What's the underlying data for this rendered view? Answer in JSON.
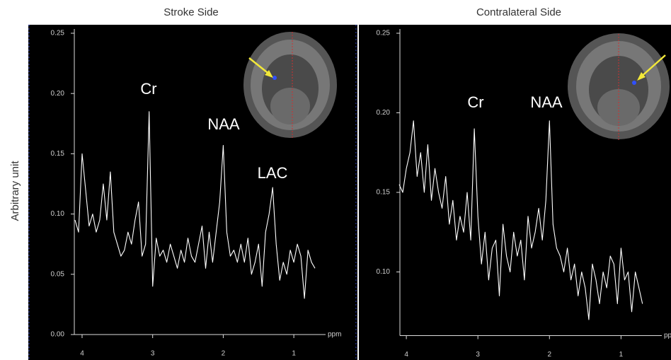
{
  "chart_data": [
    {
      "type": "line",
      "title": "Stroke Side",
      "ylabel": "Arbitrary unit",
      "xlabel": "ppm",
      "x": [
        4.1,
        4.05,
        4.0,
        3.95,
        3.9,
        3.85,
        3.8,
        3.75,
        3.7,
        3.65,
        3.6,
        3.55,
        3.5,
        3.45,
        3.4,
        3.35,
        3.3,
        3.25,
        3.2,
        3.15,
        3.1,
        3.05,
        3.0,
        2.95,
        2.9,
        2.85,
        2.8,
        2.75,
        2.7,
        2.65,
        2.6,
        2.55,
        2.5,
        2.45,
        2.4,
        2.35,
        2.3,
        2.25,
        2.2,
        2.15,
        2.1,
        2.05,
        2.0,
        1.95,
        1.9,
        1.85,
        1.8,
        1.75,
        1.7,
        1.65,
        1.6,
        1.55,
        1.5,
        1.45,
        1.4,
        1.35,
        1.3,
        1.25,
        1.2,
        1.15,
        1.1,
        1.05,
        1.0,
        0.95,
        0.9,
        0.85,
        0.8,
        0.75,
        0.7
      ],
      "series": [
        {
          "color": "#ffffff",
          "values": [
            0.095,
            0.085,
            0.15,
            0.12,
            0.09,
            0.1,
            0.085,
            0.095,
            0.125,
            0.095,
            0.135,
            0.085,
            0.075,
            0.065,
            0.07,
            0.085,
            0.075,
            0.095,
            0.11,
            0.065,
            0.075,
            0.185,
            0.04,
            0.08,
            0.065,
            0.07,
            0.06,
            0.075,
            0.065,
            0.055,
            0.07,
            0.06,
            0.08,
            0.065,
            0.06,
            0.075,
            0.09,
            0.055,
            0.085,
            0.06,
            0.085,
            0.11,
            0.157,
            0.085,
            0.065,
            0.07,
            0.06,
            0.075,
            0.06,
            0.08,
            0.05,
            0.06,
            0.075,
            0.04,
            0.085,
            0.1,
            0.122,
            0.075,
            0.045,
            0.06,
            0.05,
            0.07,
            0.06,
            0.075,
            0.065,
            0.03,
            0.07,
            0.06,
            0.055
          ]
        }
      ],
      "xlim": [
        4.11,
        0.55
      ],
      "ylim": [
        0,
        0.25
      ],
      "xticks": [
        4,
        3,
        2,
        1
      ],
      "yticks": [
        {
          "value": 0,
          "label": "0.00"
        },
        {
          "value": 0.05,
          "label": "0.05"
        },
        {
          "value": 0.1,
          "label": "0.10"
        },
        {
          "value": 0.15,
          "label": "0.15"
        },
        {
          "value": 0.2,
          "label": "0.20"
        },
        {
          "value": 0.25,
          "label": "0.25"
        }
      ],
      "annotations": [
        "Cr",
        "NAA",
        "LAC"
      ]
    },
    {
      "type": "line",
      "title": "Contralateral Side",
      "xlabel": "ppm",
      "x": [
        4.1,
        4.05,
        4.0,
        3.95,
        3.9,
        3.85,
        3.8,
        3.75,
        3.7,
        3.65,
        3.6,
        3.55,
        3.5,
        3.45,
        3.4,
        3.35,
        3.3,
        3.25,
        3.2,
        3.15,
        3.1,
        3.05,
        3.0,
        2.95,
        2.9,
        2.85,
        2.8,
        2.75,
        2.7,
        2.65,
        2.6,
        2.55,
        2.5,
        2.45,
        2.4,
        2.35,
        2.3,
        2.25,
        2.2,
        2.15,
        2.1,
        2.05,
        2.0,
        1.95,
        1.9,
        1.85,
        1.8,
        1.75,
        1.7,
        1.65,
        1.6,
        1.55,
        1.5,
        1.45,
        1.4,
        1.35,
        1.3,
        1.25,
        1.2,
        1.15,
        1.1,
        1.05,
        1.0,
        0.95,
        0.9,
        0.85,
        0.8,
        0.75,
        0.7
      ],
      "series": [
        {
          "color": "#ffffff",
          "values": [
            0.155,
            0.15,
            0.165,
            0.175,
            0.195,
            0.16,
            0.175,
            0.15,
            0.18,
            0.145,
            0.165,
            0.15,
            0.14,
            0.16,
            0.13,
            0.145,
            0.12,
            0.135,
            0.125,
            0.15,
            0.12,
            0.19,
            0.135,
            0.105,
            0.125,
            0.095,
            0.115,
            0.12,
            0.085,
            0.13,
            0.11,
            0.1,
            0.125,
            0.11,
            0.12,
            0.095,
            0.135,
            0.115,
            0.125,
            0.14,
            0.12,
            0.145,
            0.195,
            0.13,
            0.115,
            0.11,
            0.1,
            0.115,
            0.095,
            0.105,
            0.085,
            0.1,
            0.09,
            0.07,
            0.105,
            0.095,
            0.08,
            0.1,
            0.09,
            0.11,
            0.105,
            0.08,
            0.115,
            0.095,
            0.1,
            0.075,
            0.1,
            0.09,
            0.08
          ]
        }
      ],
      "xlim": [
        4.09,
        0.43
      ],
      "ylim": [
        0.06,
        0.25
      ],
      "xticks": [
        4,
        3,
        2,
        1
      ],
      "yticks": [
        {
          "value": 0.1,
          "label": "0.10"
        },
        {
          "value": 0.15,
          "label": "0.15"
        },
        {
          "value": 0.2,
          "label": "0.20"
        },
        {
          "value": 0.25,
          "label": "0.25"
        }
      ],
      "annotations": [
        "Cr",
        "NAA"
      ]
    }
  ]
}
